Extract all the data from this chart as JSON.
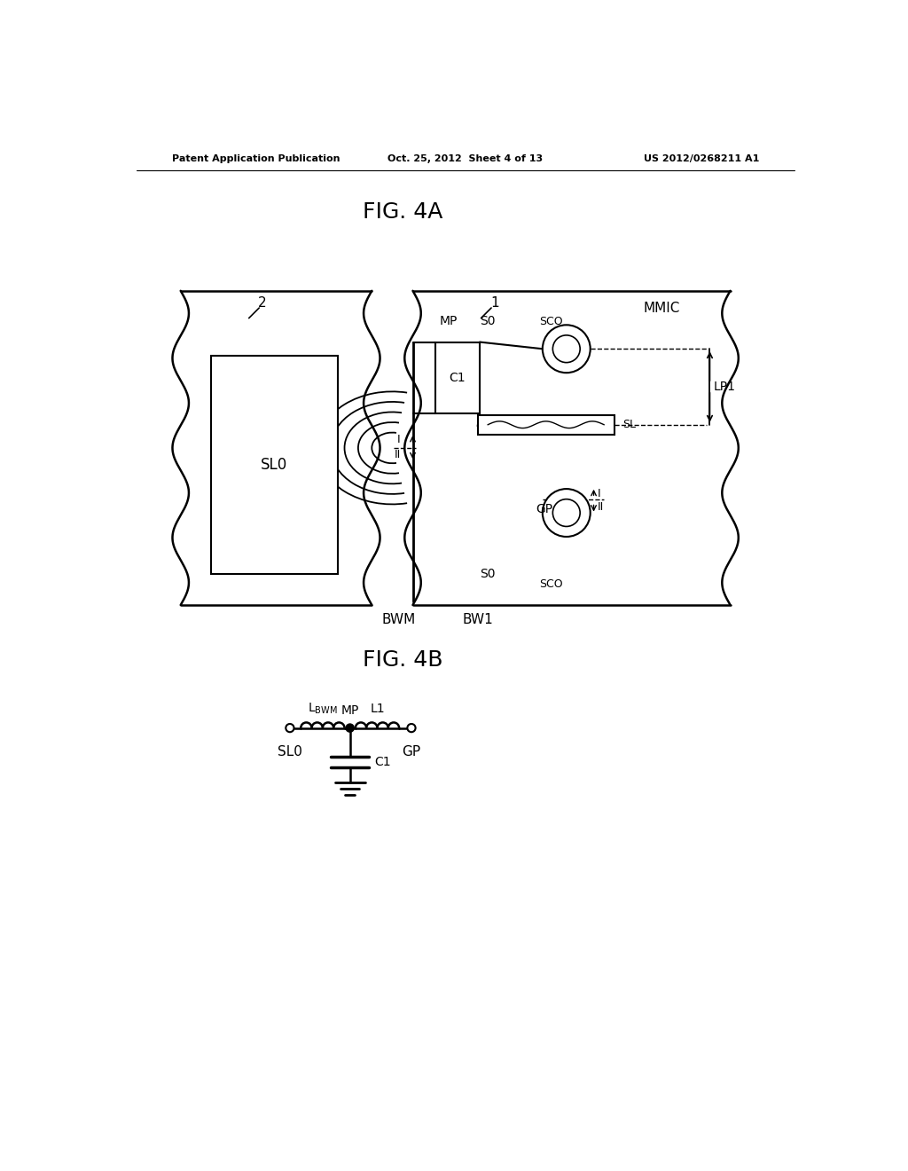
{
  "header_left": "Patent Application Publication",
  "header_center": "Oct. 25, 2012  Sheet 4 of 13",
  "header_right": "US 2012/0268211 A1",
  "fig4a_title": "FIG. 4A",
  "fig4b_title": "FIG. 4B",
  "bg_color": "#ffffff",
  "line_color": "#000000"
}
